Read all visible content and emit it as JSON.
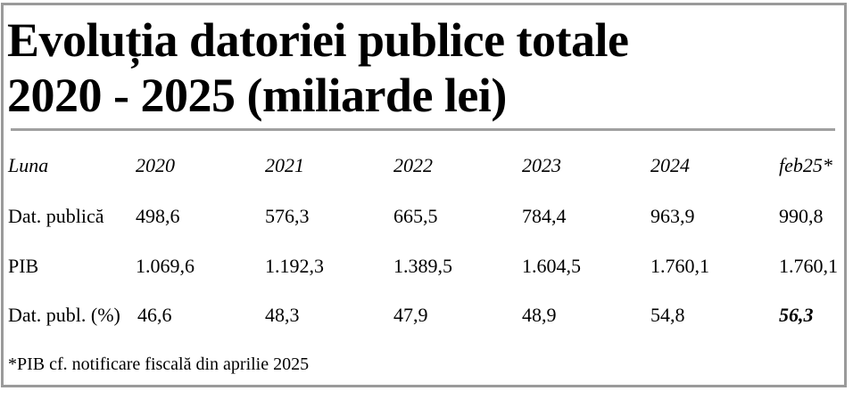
{
  "title": {
    "line1": "Evoluția datoriei publice totale",
    "line2": "2020 - 2025 (miliarde lei)"
  },
  "table": {
    "columns": [
      "Luna",
      "2020",
      "2021",
      "2022",
      "2023",
      "2024",
      "feb25*"
    ],
    "rows": [
      [
        "Dat. publică",
        "498,6",
        "576,3",
        "665,5",
        "784,4",
        "963,9",
        "990,8"
      ],
      [
        "PIB",
        "1.069,6",
        "1.192,3",
        "1.389,5",
        "1.604,5",
        "1.760,1",
        "1.760,1"
      ],
      [
        "Dat. publ. (%)",
        "46,6",
        "48,3",
        "47,9",
        "48,9",
        "54,8",
        "56,3"
      ]
    ]
  },
  "footnote": "*PIB cf. notificare fiscală din aprilie 2025"
}
